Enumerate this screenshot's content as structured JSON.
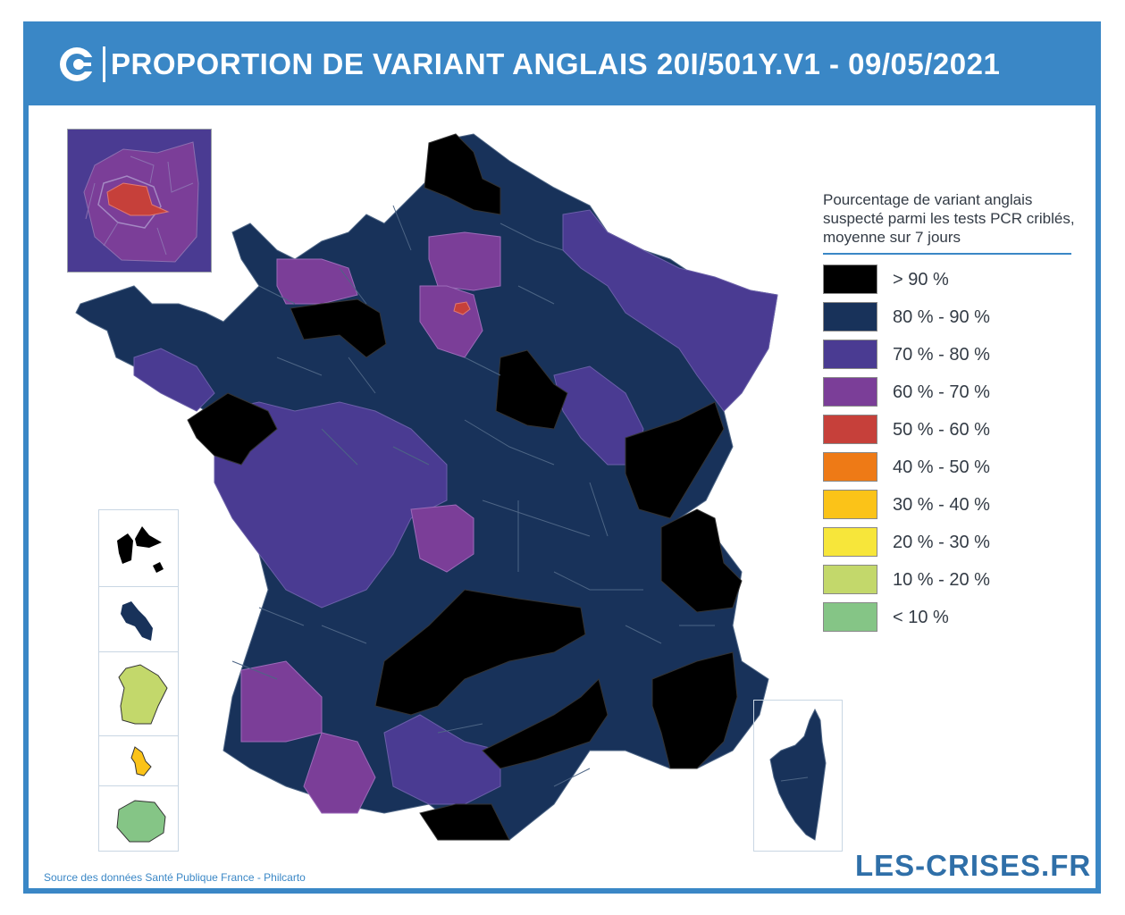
{
  "header": {
    "title": "PROPORTION DE VARIANT ANGLAIS 20I/501Y.V1 - 09/05/2021",
    "logo_icon": "les-crises-c-icon",
    "background_color": "#3a87c6"
  },
  "legend": {
    "title": "Pourcentage de variant anglais suspecté parmi les tests PCR criblés, moyenne sur 7 jours",
    "items": [
      {
        "label": "> 90 %",
        "color": "#000000"
      },
      {
        "label": "80 % - 90 %",
        "color": "#18325a"
      },
      {
        "label": "70 % - 80 %",
        "color": "#4a3b92"
      },
      {
        "label": "60 % - 70 %",
        "color": "#7b3e98"
      },
      {
        "label": "50 % - 60 %",
        "color": "#c6403a"
      },
      {
        "label": "40 % - 50 %",
        "color": "#ee7a16"
      },
      {
        "label": "30 % - 40 %",
        "color": "#fbc318"
      },
      {
        "label": "20 % - 30 %",
        "color": "#f7e63a"
      },
      {
        "label": "10 % - 20 %",
        "color": "#c3d86b"
      },
      {
        "label": "< 10 %",
        "color": "#85c586"
      }
    ]
  },
  "footer": {
    "source": "Source des données Santé Publique France - Philcarto",
    "brand": "LES-CRISES.FR"
  }
}
